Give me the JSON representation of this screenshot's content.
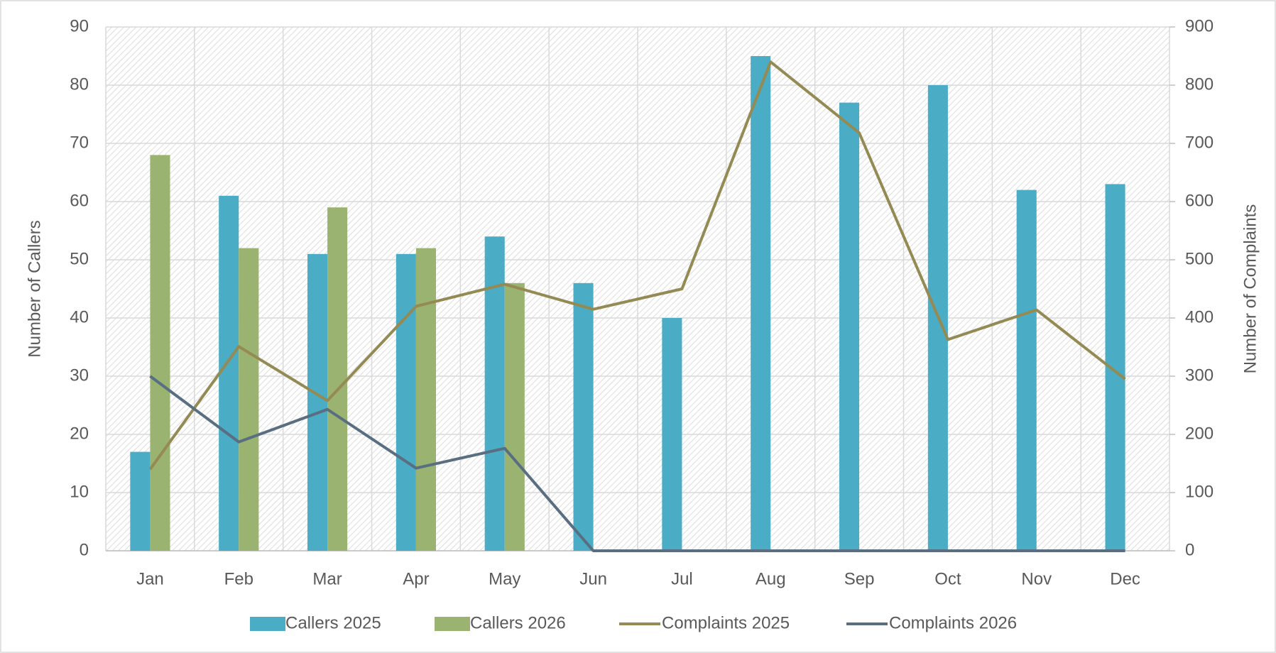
{
  "chart_data": {
    "type": "bar",
    "categories": [
      "Jan",
      "Feb",
      "Mar",
      "Apr",
      "May",
      "Jun",
      "Jul",
      "Aug",
      "Sep",
      "Oct",
      "Nov",
      "Dec"
    ],
    "series": [
      {
        "name": "Callers 2025",
        "color": "#4bacc6",
        "type": "bar",
        "values": [
          17,
          61,
          51,
          51,
          54,
          46,
          40,
          85,
          77,
          80,
          62,
          63
        ]
      },
      {
        "name": "Callers 2026",
        "color": "#9bb370",
        "type": "bar",
        "values": [
          68,
          52,
          59,
          52,
          46,
          null,
          null,
          null,
          null,
          null,
          null,
          null
        ]
      },
      {
        "name": "Complaints 2025",
        "color": "#948a54",
        "type": "line",
        "axis": "y2",
        "values": [
          140,
          351,
          258,
          420,
          458,
          415,
          450,
          840,
          718,
          363,
          414,
          295
        ]
      },
      {
        "name": "Complaints 2026",
        "color": "#5a6e82",
        "type": "line",
        "axis": "y2",
        "values": [
          300,
          187,
          243,
          142,
          176,
          0,
          0,
          0,
          0,
          0,
          0,
          0
        ]
      }
    ],
    "ylabel": "Number of Callers",
    "y2label": "Number of Complaints",
    "ylim": [
      0,
      90
    ],
    "yticks": [
      0,
      10,
      20,
      30,
      40,
      50,
      60,
      70,
      80,
      90
    ],
    "y2lim": [
      0,
      900
    ],
    "y2ticks": [
      0,
      100,
      200,
      300,
      400,
      500,
      600,
      700,
      800,
      900
    ],
    "grid": true,
    "legend": "bottom"
  }
}
